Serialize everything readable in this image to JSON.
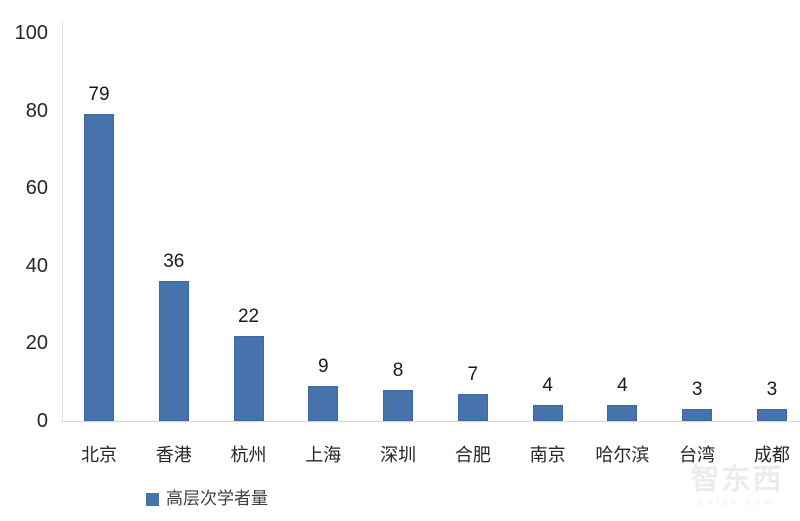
{
  "chart_data": {
    "type": "bar",
    "categories": [
      "北京",
      "香港",
      "杭州",
      "上海",
      "深圳",
      "合肥",
      "南京",
      "哈尔滨",
      "台湾",
      "成都"
    ],
    "values": [
      79,
      36,
      22,
      9,
      8,
      7,
      4,
      4,
      3,
      3
    ],
    "series_name": "高层次学者量",
    "title": "",
    "xlabel": "",
    "ylabel": "",
    "ylim": [
      0,
      100
    ],
    "yticks": [
      0,
      20,
      40,
      60,
      80,
      100
    ],
    "grid": false,
    "data_labels": true,
    "legend_position": "bottom-left",
    "bar_color": "#4673ab",
    "bar_border_color": "#3c68a5",
    "axis_line_color": "#e4e4e4"
  },
  "legend": {
    "label": "高层次学者量"
  },
  "watermark": {
    "title": "智东西",
    "subtitle": "zhidx.com"
  }
}
